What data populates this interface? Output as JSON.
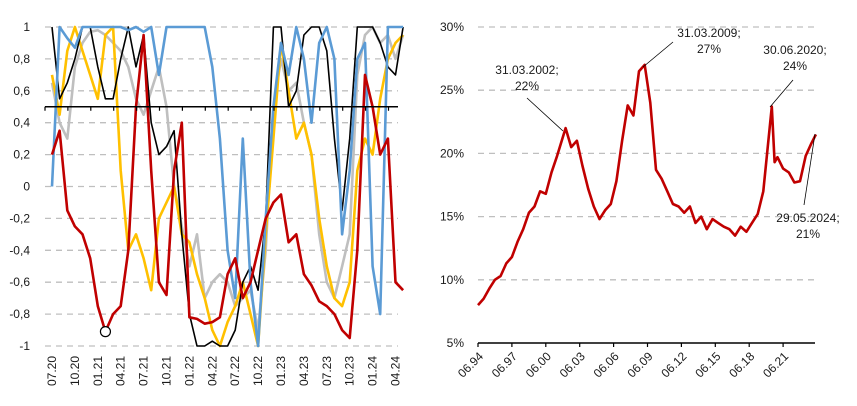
{
  "colors": {
    "red": "#c00000",
    "blue": "#5b9bd5",
    "yellow": "#ffc000",
    "gray": "#bfbfbf",
    "black": "#000000",
    "grid": "#bfbfbf"
  },
  "chart_data": [
    {
      "type": "line",
      "title": "",
      "xlabel": "",
      "ylabel": "",
      "ylim": [
        -1,
        1
      ],
      "yticks": [
        "1",
        "0,8",
        "0,6",
        "0,4",
        "0,2",
        "0",
        "-0,2",
        "-0,4",
        "-0,6",
        "-0,8",
        "-1"
      ],
      "xticks": [
        "07.20",
        "10.20",
        "01.21",
        "04.21",
        "07.21",
        "10.21",
        "01.22",
        "04.22",
        "07.22",
        "10.22",
        "01.23",
        "04.23",
        "07.23",
        "10.23",
        "01.24",
        "04.24"
      ],
      "reference_line": {
        "y": 0.5,
        "style": "solid black axis line with tick marks"
      },
      "grid": "dashed horizontal",
      "legend": "none",
      "annotations": [
        {
          "type": "circle-marker",
          "series": "red",
          "x": "02.21",
          "y": -0.91
        }
      ],
      "series": [
        {
          "name": "red",
          "color": "#c00000",
          "x": [
            "07.20",
            "08.20",
            "09.20",
            "10.20",
            "11.20",
            "12.20",
            "01.21",
            "02.21",
            "03.21",
            "04.21",
            "05.21",
            "06.21",
            "07.21",
            "08.21",
            "09.21",
            "10.21",
            "11.21",
            "12.21",
            "01.22",
            "02.22",
            "03.22",
            "04.22",
            "05.22",
            "06.22",
            "07.22",
            "08.22",
            "09.22",
            "10.22",
            "11.22",
            "12.22",
            "01.23",
            "02.23",
            "03.23",
            "04.23",
            "05.23",
            "06.23",
            "07.23",
            "08.23",
            "09.23",
            "10.23",
            "11.23",
            "12.23",
            "01.24",
            "02.24",
            "03.24",
            "04.24",
            "05.24"
          ],
          "values": [
            0.2,
            0.35,
            -0.15,
            -0.25,
            -0.3,
            -0.45,
            -0.75,
            -0.91,
            -0.8,
            -0.75,
            -0.4,
            0.5,
            0.95,
            0.1,
            -0.6,
            -0.68,
            0.1,
            0.4,
            -0.82,
            -0.83,
            -0.86,
            -0.85,
            -0.82,
            -0.55,
            -0.45,
            -0.7,
            -0.6,
            -0.4,
            -0.2,
            -0.1,
            -0.05,
            -0.35,
            -0.3,
            -0.55,
            -0.62,
            -0.72,
            -0.75,
            -0.8,
            -0.9,
            -0.95,
            -0.4,
            0.7,
            0.5,
            0.2,
            0.3,
            -0.6,
            -0.65
          ]
        },
        {
          "name": "blue",
          "color": "#5b9bd5",
          "x": [
            "07.20",
            "08.20",
            "09.20",
            "10.20",
            "11.20",
            "12.20",
            "01.21",
            "02.21",
            "03.21",
            "04.21",
            "05.21",
            "06.21",
            "07.21",
            "08.21",
            "09.21",
            "10.21",
            "11.21",
            "12.21",
            "01.22",
            "02.22",
            "03.22",
            "04.22",
            "05.22",
            "06.22",
            "07.22",
            "08.22",
            "09.22",
            "10.22",
            "11.22",
            "12.22",
            "01.23",
            "02.23",
            "03.23",
            "04.23",
            "05.23",
            "06.23",
            "07.23",
            "08.23",
            "09.23",
            "10.23",
            "11.23",
            "12.23",
            "01.24",
            "02.24",
            "03.24",
            "04.24",
            "05.24"
          ],
          "values": [
            0.0,
            1.0,
            0.93,
            0.87,
            1.0,
            1.0,
            1.0,
            1.0,
            1.0,
            1.0,
            0.98,
            1.0,
            0.97,
            1.0,
            0.7,
            1.0,
            1.0,
            1.0,
            1.0,
            1.0,
            1.0,
            0.75,
            0.3,
            -0.4,
            -0.7,
            0.3,
            -0.6,
            -1.0,
            -0.2,
            0.5,
            0.9,
            0.7,
            1.0,
            0.8,
            0.4,
            0.9,
            1.0,
            0.8,
            -0.3,
            0.1,
            0.8,
            0.9,
            -0.5,
            -0.8,
            1.0,
            1.0,
            1.0
          ]
        },
        {
          "name": "yellow",
          "color": "#ffc000",
          "x": [
            "07.20",
            "08.20",
            "09.20",
            "10.20",
            "11.20",
            "12.20",
            "01.21",
            "02.21",
            "03.21",
            "04.21",
            "05.21",
            "06.21",
            "07.21",
            "08.21",
            "09.21",
            "10.21",
            "11.21",
            "12.21",
            "01.22",
            "02.22",
            "03.22",
            "04.22",
            "05.22",
            "06.22",
            "07.22",
            "08.22",
            "09.22",
            "10.22",
            "11.22",
            "12.22",
            "01.23",
            "02.23",
            "03.23",
            "04.23",
            "05.23",
            "06.23",
            "07.23",
            "08.23",
            "09.23",
            "10.23",
            "11.23",
            "12.23",
            "01.24",
            "02.24",
            "03.24",
            "04.24",
            "05.24"
          ],
          "values": [
            0.7,
            0.45,
            0.85,
            1.0,
            0.85,
            0.7,
            0.55,
            0.95,
            1.0,
            0.1,
            -0.4,
            -0.3,
            -0.45,
            -0.65,
            -0.2,
            -0.1,
            0.0,
            -0.3,
            -0.35,
            -0.55,
            -0.7,
            -0.9,
            -1.0,
            -0.85,
            -0.75,
            -0.6,
            -0.8,
            -1.0,
            -0.3,
            0.3,
            0.9,
            0.6,
            0.3,
            0.4,
            0.2,
            -0.2,
            -0.5,
            -0.7,
            -0.75,
            -0.6,
            0.1,
            0.3,
            0.2,
            0.55,
            0.8,
            0.9,
            0.95
          ]
        },
        {
          "name": "gray",
          "color": "#bfbfbf",
          "x": [
            "07.20",
            "08.20",
            "09.20",
            "10.20",
            "11.20",
            "12.20",
            "01.21",
            "02.21",
            "03.21",
            "04.21",
            "05.21",
            "06.21",
            "07.21",
            "08.21",
            "09.21",
            "10.21",
            "11.21",
            "12.21",
            "01.22",
            "02.22",
            "03.22",
            "04.22",
            "05.22",
            "06.22",
            "07.22",
            "08.22",
            "09.22",
            "10.22",
            "11.22",
            "12.22",
            "01.23",
            "02.23",
            "03.23",
            "04.23",
            "05.23",
            "06.23",
            "07.23",
            "08.23",
            "09.23",
            "10.23",
            "11.23",
            "12.23",
            "01.24",
            "02.24",
            "03.24",
            "04.24",
            "05.24"
          ],
          "values": [
            0.65,
            0.4,
            0.3,
            0.75,
            0.9,
            0.97,
            0.98,
            0.95,
            0.9,
            0.85,
            0.75,
            0.55,
            0.45,
            0.6,
            0.75,
            0.5,
            0.0,
            -0.25,
            -0.5,
            -0.3,
            -0.7,
            -0.6,
            -0.55,
            -0.6,
            -0.75,
            -0.7,
            -0.65,
            -0.9,
            -0.4,
            0.5,
            0.8,
            0.6,
            0.65,
            0.4,
            0.2,
            -0.3,
            -0.6,
            -0.7,
            -0.5,
            -0.3,
            0.7,
            0.95,
            1.0,
            0.9,
            0.95,
            0.8,
            0.95
          ]
        },
        {
          "name": "black",
          "color": "#000000",
          "x": [
            "07.20",
            "08.20",
            "09.20",
            "10.20",
            "11.20",
            "12.20",
            "01.21",
            "02.21",
            "03.21",
            "04.21",
            "05.21",
            "06.21",
            "07.21",
            "08.21",
            "09.21",
            "10.21",
            "11.21",
            "12.21",
            "01.22",
            "02.22",
            "03.22",
            "04.22",
            "05.22",
            "06.22",
            "07.22",
            "08.22",
            "09.22",
            "10.22",
            "11.22",
            "12.22",
            "01.23",
            "02.23",
            "03.23",
            "04.23",
            "05.23",
            "06.23",
            "07.23",
            "08.23",
            "09.23",
            "10.23",
            "11.23",
            "12.23",
            "01.24",
            "02.24",
            "03.24",
            "04.24",
            "05.24"
          ],
          "values": [
            1.0,
            0.55,
            0.65,
            0.8,
            1.0,
            1.0,
            0.75,
            0.55,
            0.55,
            0.8,
            1.0,
            0.75,
            0.95,
            0.4,
            0.2,
            0.25,
            0.35,
            -0.3,
            -0.8,
            -1.0,
            -1.0,
            -0.97,
            -1.0,
            -1.0,
            -0.9,
            -0.6,
            -0.5,
            -0.65,
            -0.2,
            1.0,
            1.0,
            0.5,
            0.6,
            0.95,
            1.0,
            1.0,
            0.85,
            0.3,
            -0.15,
            0.3,
            1.0,
            1.0,
            1.0,
            0.9,
            0.75,
            0.7,
            1.0
          ]
        }
      ]
    },
    {
      "type": "line",
      "title": "",
      "xlabel": "",
      "ylabel": "",
      "ylim": [
        0.05,
        0.3
      ],
      "yticks": [
        "5%",
        "10%",
        "15%",
        "20%",
        "25%",
        "30%"
      ],
      "xticks": [
        "06.94",
        "06.97",
        "06.00",
        "06.03",
        "06.06",
        "06.09",
        "06.12",
        "06.15",
        "06.18",
        "06.21"
      ],
      "grid": "dashed horizontal",
      "legend": "none",
      "annotations": [
        {
          "date": "31.03.2002",
          "value": "22%"
        },
        {
          "date": "31.03.2009",
          "value": "27%"
        },
        {
          "date": "30.06.2020",
          "value": "24%"
        },
        {
          "date": "29.05.2024",
          "value": "21%"
        }
      ],
      "series": [
        {
          "name": "red",
          "color": "#c00000",
          "x": [
            1994.5,
            1995,
            1995.5,
            1996,
            1996.5,
            1997,
            1997.5,
            1998,
            1998.5,
            1999,
            1999.5,
            2000,
            2000.5,
            2001,
            2001.5,
            2002.25,
            2002.75,
            2003.25,
            2003.75,
            2004.25,
            2004.75,
            2005.25,
            2005.75,
            2006.25,
            2006.75,
            2007.25,
            2007.75,
            2008.25,
            2008.75,
            2009.25,
            2009.75,
            2010.25,
            2010.75,
            2011.25,
            2011.75,
            2012.25,
            2012.75,
            2013.25,
            2013.75,
            2014.25,
            2014.75,
            2015.25,
            2015.75,
            2016.25,
            2016.75,
            2017.25,
            2017.75,
            2018.25,
            2018.75,
            2019.25,
            2019.75,
            2020.5,
            2020.75,
            2021.0,
            2021.5,
            2022.0,
            2022.5,
            2023.0,
            2023.5,
            2024.0,
            2024.4
          ],
          "values": [
            0.08,
            0.085,
            0.093,
            0.1,
            0.103,
            0.113,
            0.118,
            0.13,
            0.14,
            0.153,
            0.158,
            0.17,
            0.168,
            0.185,
            0.198,
            0.22,
            0.205,
            0.21,
            0.19,
            0.172,
            0.158,
            0.148,
            0.155,
            0.16,
            0.178,
            0.21,
            0.238,
            0.23,
            0.265,
            0.27,
            0.24,
            0.187,
            0.18,
            0.17,
            0.16,
            0.158,
            0.153,
            0.158,
            0.145,
            0.15,
            0.14,
            0.148,
            0.145,
            0.142,
            0.14,
            0.135,
            0.142,
            0.138,
            0.145,
            0.152,
            0.17,
            0.237,
            0.193,
            0.197,
            0.188,
            0.185,
            0.177,
            0.178,
            0.198,
            0.208,
            0.215
          ]
        }
      ]
    }
  ]
}
